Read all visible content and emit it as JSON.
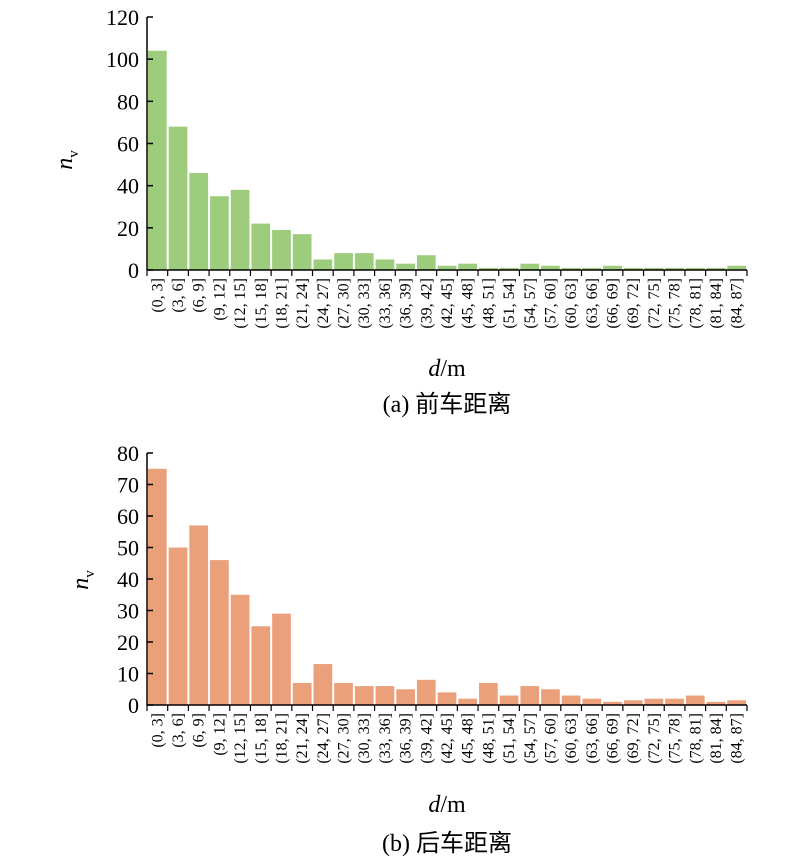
{
  "chart_data": [
    {
      "type": "bar",
      "caption": "(a) 前车距离",
      "ylabel_main": "n",
      "ylabel_sub": "v",
      "xlabel_italic": "d",
      "xlabel_unit": "/m",
      "ylim": [
        0,
        120
      ],
      "yticks": [
        "0",
        "20",
        "40",
        "60",
        "80",
        "100",
        "120"
      ],
      "color": "#9ccc7c",
      "categories": [
        "(0, 3]",
        "(3, 6]",
        "(6, 9]",
        "(9, 12]",
        "(12, 15]",
        "(15, 18]",
        "(18, 21]",
        "(21, 24]",
        "(24, 27]",
        "(27, 30]",
        "(30, 33]",
        "(33, 36]",
        "(36, 39]",
        "(39, 42]",
        "(42, 45]",
        "(45, 48]",
        "(48, 51]",
        "(51, 54]",
        "(54, 57]",
        "(57, 60]",
        "(60, 63]",
        "(63, 66]",
        "(66, 69]",
        "(69, 72]",
        "(72, 75]",
        "(75, 78]",
        "(78, 81]",
        "(81, 84]",
        "(84, 87]"
      ],
      "values": [
        104,
        68,
        46,
        35,
        38,
        22,
        19,
        17,
        5,
        8,
        8,
        5,
        3,
        7,
        2,
        3,
        1,
        1,
        3,
        2,
        1,
        1,
        2,
        1,
        1,
        1,
        1,
        1,
        2
      ]
    },
    {
      "type": "bar",
      "caption": "(b) 后车距离",
      "ylabel_main": "n",
      "ylabel_sub": "v",
      "xlabel_italic": "d",
      "xlabel_unit": "/m",
      "ylim": [
        0,
        80
      ],
      "yticks": [
        "0",
        "10",
        "20",
        "30",
        "40",
        "50",
        "60",
        "70",
        "80"
      ],
      "color": "#eba07c",
      "categories": [
        "(0, 3]",
        "(3, 6]",
        "(6, 9]",
        "(9, 12]",
        "(12, 15]",
        "(15, 18]",
        "(18, 21]",
        "(21, 24]",
        "(24, 27]",
        "(27, 30]",
        "(30, 33]",
        "(33, 36]",
        "(36, 39]",
        "(39, 42]",
        "(42, 45]",
        "(45, 48]",
        "(48, 51]",
        "(51, 54]",
        "(54, 57]",
        "(57, 60]",
        "(60, 63]",
        "(63, 66]",
        "(66, 69]",
        "(69, 72]",
        "(72, 75]",
        "(75, 78]",
        "(78, 81]",
        "(81, 84]",
        "(84, 87]"
      ],
      "values": [
        75,
        50,
        57,
        46,
        35,
        25,
        29,
        7,
        13,
        7,
        6,
        6,
        5,
        8,
        4,
        2,
        7,
        3,
        6,
        5,
        3,
        2,
        1,
        1.5,
        2,
        2,
        3,
        1,
        1.5
      ]
    }
  ]
}
